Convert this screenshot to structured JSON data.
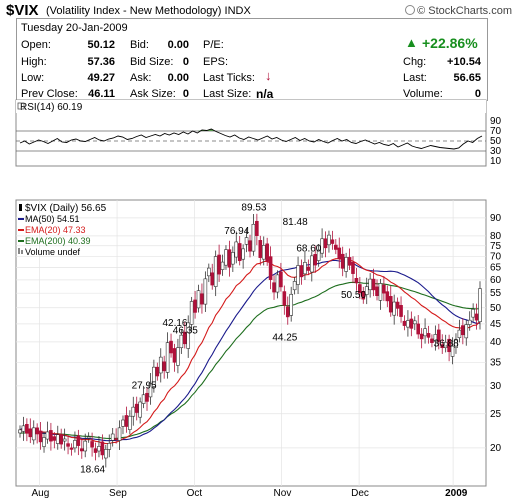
{
  "header": {
    "symbol": "$VIX",
    "description": "(Volatility Index - New Methodology)",
    "exchange": "INDX",
    "copyright": "© StockCharts.com"
  },
  "quote": {
    "date": "Tuesday  20-Jan-2009",
    "open_label": "Open:",
    "open": "50.12",
    "high_label": "High:",
    "high": "57.36",
    "low_label": "Low:",
    "low": "49.27",
    "prev_label": "Prev Close:",
    "prev": "46.11",
    "bid_label": "Bid:",
    "bid": "0.00",
    "bidsize_label": "Bid Size:",
    "bidsize": "0",
    "ask_label": "Ask:",
    "ask": "0.00",
    "asksize_label": "Ask Size:",
    "asksize": "0",
    "pe_label": "P/E:",
    "eps_label": "EPS:",
    "lastticks_label": "Last Ticks:",
    "lastsize_label": "Last Size:",
    "lastsize": "n/a",
    "chgpct": "+22.86%",
    "chg_label": "Chg:",
    "chg": "+10.54",
    "last_label": "Last:",
    "last": "56.65",
    "volume_label": "Volume:",
    "volume": "0"
  },
  "colors": {
    "up": "#188f1f",
    "down": "#b0103a",
    "rsi_fill": "#5a9e4f",
    "ma50": "#1a1a8c",
    "ema20": "#d41a1a",
    "ema200": "#1e6e1e"
  },
  "chart_data": [
    {
      "type": "line",
      "title": "RSI(14) 60.19",
      "ylim": [
        0,
        100
      ],
      "y_ticks": [
        10,
        30,
        50,
        70,
        90
      ],
      "reference_lines": [
        30,
        50,
        70
      ],
      "values": [
        46,
        50,
        44,
        48,
        52,
        49,
        45,
        50,
        55,
        48,
        47,
        52,
        54,
        50,
        49,
        53,
        57,
        52,
        50,
        54,
        56,
        60,
        58,
        53,
        55,
        59,
        62,
        57,
        60,
        63,
        60,
        65,
        62,
        66,
        63,
        68,
        64,
        70,
        66,
        72,
        71,
        74,
        69,
        65,
        61,
        58,
        62,
        56,
        53,
        58,
        55,
        52,
        56,
        60,
        54,
        57,
        52,
        49,
        53,
        57,
        51,
        55,
        50,
        48,
        53,
        49,
        46,
        51,
        55,
        50,
        53,
        47,
        45,
        49,
        52,
        48,
        44,
        47,
        43,
        41,
        45,
        38,
        42,
        46,
        40,
        37,
        35,
        38,
        41,
        39,
        37,
        36,
        35,
        34,
        36,
        44,
        50,
        47,
        55,
        60
      ]
    },
    {
      "type": "candlestick",
      "title": "$VIX (Daily) 56.65",
      "x_ticks": [
        "Aug",
        "Sep",
        "Oct",
        "Nov",
        "Dec",
        "2009"
      ],
      "y_ticks": [
        20,
        25,
        30,
        35,
        40,
        45,
        50,
        55,
        60,
        65,
        70,
        75,
        80,
        90
      ],
      "ylim": [
        16,
        96
      ],
      "y_scale": "log",
      "legend": [
        "$VIX (Daily) 56.65",
        "MA(50) 54.51",
        "EMA(20) 47.33",
        "EMA(200) 40.39",
        "Volume undef"
      ],
      "annotations": [
        {
          "text": "18.64",
          "value": 18.64
        },
        {
          "text": "27.95",
          "value": 27.95
        },
        {
          "text": "42.16",
          "value": 42.16
        },
        {
          "text": "46.35",
          "value": 46.35
        },
        {
          "text": "76.94",
          "value": 76.94
        },
        {
          "text": "89.53",
          "value": 89.53
        },
        {
          "text": "44.25",
          "value": 44.25
        },
        {
          "text": "81.48",
          "value": 81.48
        },
        {
          "text": "68.60",
          "value": 68.6
        },
        {
          "text": "50.50",
          "value": 50.5
        },
        {
          "text": "36.88",
          "value": 36.88
        }
      ],
      "close": [
        22.5,
        23.1,
        22.0,
        21.5,
        22.8,
        21.9,
        20.8,
        21.4,
        22.2,
        20.9,
        21.0,
        21.8,
        20.5,
        21.2,
        20.2,
        19.8,
        21.0,
        20.3,
        19.6,
        20.9,
        21.5,
        20.1,
        19.4,
        20.2,
        19.1,
        19.8,
        20.6,
        21.9,
        21.2,
        22.8,
        24.0,
        23.0,
        24.6,
        26.1,
        25.2,
        27.0,
        28.3,
        27.1,
        30.5,
        33.9,
        32.0,
        36.2,
        33.1,
        39.8,
        37.2,
        35.0,
        38.5,
        41.8,
        39.5,
        45.3,
        52.1,
        48.5,
        55.9,
        51.2,
        60.4,
        64.8,
        58.0,
        69.9,
        62.3,
        67.4,
        73.1,
        65.2,
        71.8,
        76.9,
        68.0,
        73.5,
        79.1,
        72.4,
        86.3,
        80.1,
        69.4,
        75.2,
        67.8,
        60.1,
        55.4,
        62.0,
        57.3,
        50.8,
        47.1,
        54.6,
        59.4,
        65.9,
        61.2,
        67.3,
        63.8,
        70.2,
        66.1,
        72.9,
        78.5,
        74.0,
        80.4,
        76.1,
        73.2,
        68.9,
        64.7,
        69.5,
        66.0,
        62.5,
        58.8,
        55.1,
        52.9,
        57.4,
        60.3,
        56.2,
        54.1,
        58.6,
        55.0,
        52.3,
        48.6,
        51.9,
        49.8,
        47.2,
        44.5,
        46.0,
        43.7,
        45.9,
        42.1,
        40.8,
        43.6,
        41.2,
        39.8,
        42.0,
        40.1,
        38.5,
        39.9,
        37.5,
        38.9,
        40.7,
        43.2,
        41.9,
        44.8,
        46.1,
        49.5,
        46.11,
        56.65
      ]
    }
  ]
}
